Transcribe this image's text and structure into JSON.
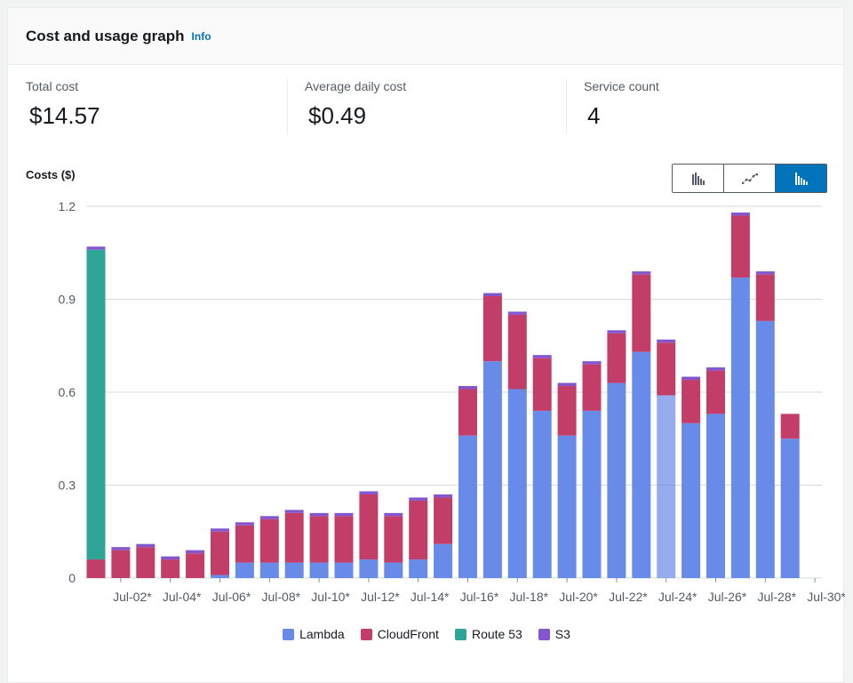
{
  "header": {
    "title": "Cost and usage graph",
    "info": "Info"
  },
  "stats": [
    {
      "label": "Total cost",
      "value": "$14.57"
    },
    {
      "label": "Average daily cost",
      "value": "$0.49"
    },
    {
      "label": "Service count",
      "value": "4"
    }
  ],
  "chart_type_buttons": [
    "bar-chart-icon",
    "line-chart-icon",
    "stacked-bar-chart-icon"
  ],
  "chart_data": {
    "type": "bar",
    "stacked": true,
    "title": "Costs ($)",
    "ylim": [
      0,
      1.2
    ],
    "yticks": [
      "0",
      "0.3",
      "0.6",
      "0.9",
      "1.2"
    ],
    "ytick_values": [
      0,
      0.3,
      0.6,
      0.9,
      1.2
    ],
    "categories": [
      "Jul-01*",
      "Jul-02*",
      "Jul-03*",
      "Jul-04*",
      "Jul-05*",
      "Jul-06*",
      "Jul-07*",
      "Jul-08*",
      "Jul-09*",
      "Jul-10*",
      "Jul-11*",
      "Jul-12*",
      "Jul-13*",
      "Jul-14*",
      "Jul-15*",
      "Jul-16*",
      "Jul-17*",
      "Jul-18*",
      "Jul-19*",
      "Jul-20*",
      "Jul-21*",
      "Jul-22*",
      "Jul-23*",
      "Jul-24*",
      "Jul-25*",
      "Jul-26*",
      "Jul-27*",
      "Jul-28*",
      "Jul-29*",
      "Jul-30*"
    ],
    "xtick_labels": [
      "Jul-02*",
      "Jul-04*",
      "Jul-06*",
      "Jul-08*",
      "Jul-10*",
      "Jul-12*",
      "Jul-14*",
      "Jul-16*",
      "Jul-18*",
      "Jul-20*",
      "Jul-22*",
      "Jul-24*",
      "Jul-26*",
      "Jul-28*",
      "Jul-30*"
    ],
    "highlighted_category": "Jul-24*",
    "series": [
      {
        "name": "Lambda",
        "color": "#688ae8",
        "values": [
          0,
          0,
          0,
          0,
          0,
          0.01,
          0.05,
          0.05,
          0.05,
          0.05,
          0.05,
          0.06,
          0.05,
          0.06,
          0.11,
          0.46,
          0.7,
          0.61,
          0.54,
          0.46,
          0.54,
          0.63,
          0.73,
          0.59,
          0.5,
          0.53,
          0.97,
          0.83,
          0.45,
          0
        ]
      },
      {
        "name": "CloudFront",
        "color": "#c33d69",
        "values": [
          0.06,
          0.09,
          0.1,
          0.06,
          0.08,
          0.14,
          0.12,
          0.14,
          0.16,
          0.15,
          0.15,
          0.21,
          0.15,
          0.19,
          0.15,
          0.15,
          0.21,
          0.24,
          0.17,
          0.16,
          0.15,
          0.16,
          0.25,
          0.17,
          0.14,
          0.14,
          0.2,
          0.15,
          0.08,
          0
        ]
      },
      {
        "name": "Route 53",
        "color": "#2ea597",
        "values": [
          1.0,
          0,
          0,
          0,
          0,
          0,
          0,
          0,
          0,
          0,
          0,
          0,
          0,
          0,
          0,
          0,
          0,
          0,
          0,
          0,
          0,
          0,
          0,
          0,
          0,
          0,
          0,
          0,
          0,
          0
        ]
      },
      {
        "name": "S3",
        "color": "#8456ce",
        "values": [
          0.01,
          0.01,
          0.01,
          0.01,
          0.01,
          0.01,
          0.01,
          0.01,
          0.01,
          0.01,
          0.01,
          0.01,
          0.01,
          0.01,
          0.01,
          0.01,
          0.01,
          0.01,
          0.01,
          0.01,
          0.01,
          0.01,
          0.01,
          0.01,
          0.01,
          0.01,
          0.01,
          0.01,
          0,
          0
        ]
      }
    ]
  },
  "colors": {
    "accent": "#0073bb",
    "grid": "#d5dbdb",
    "axis_text": "#545b64"
  }
}
